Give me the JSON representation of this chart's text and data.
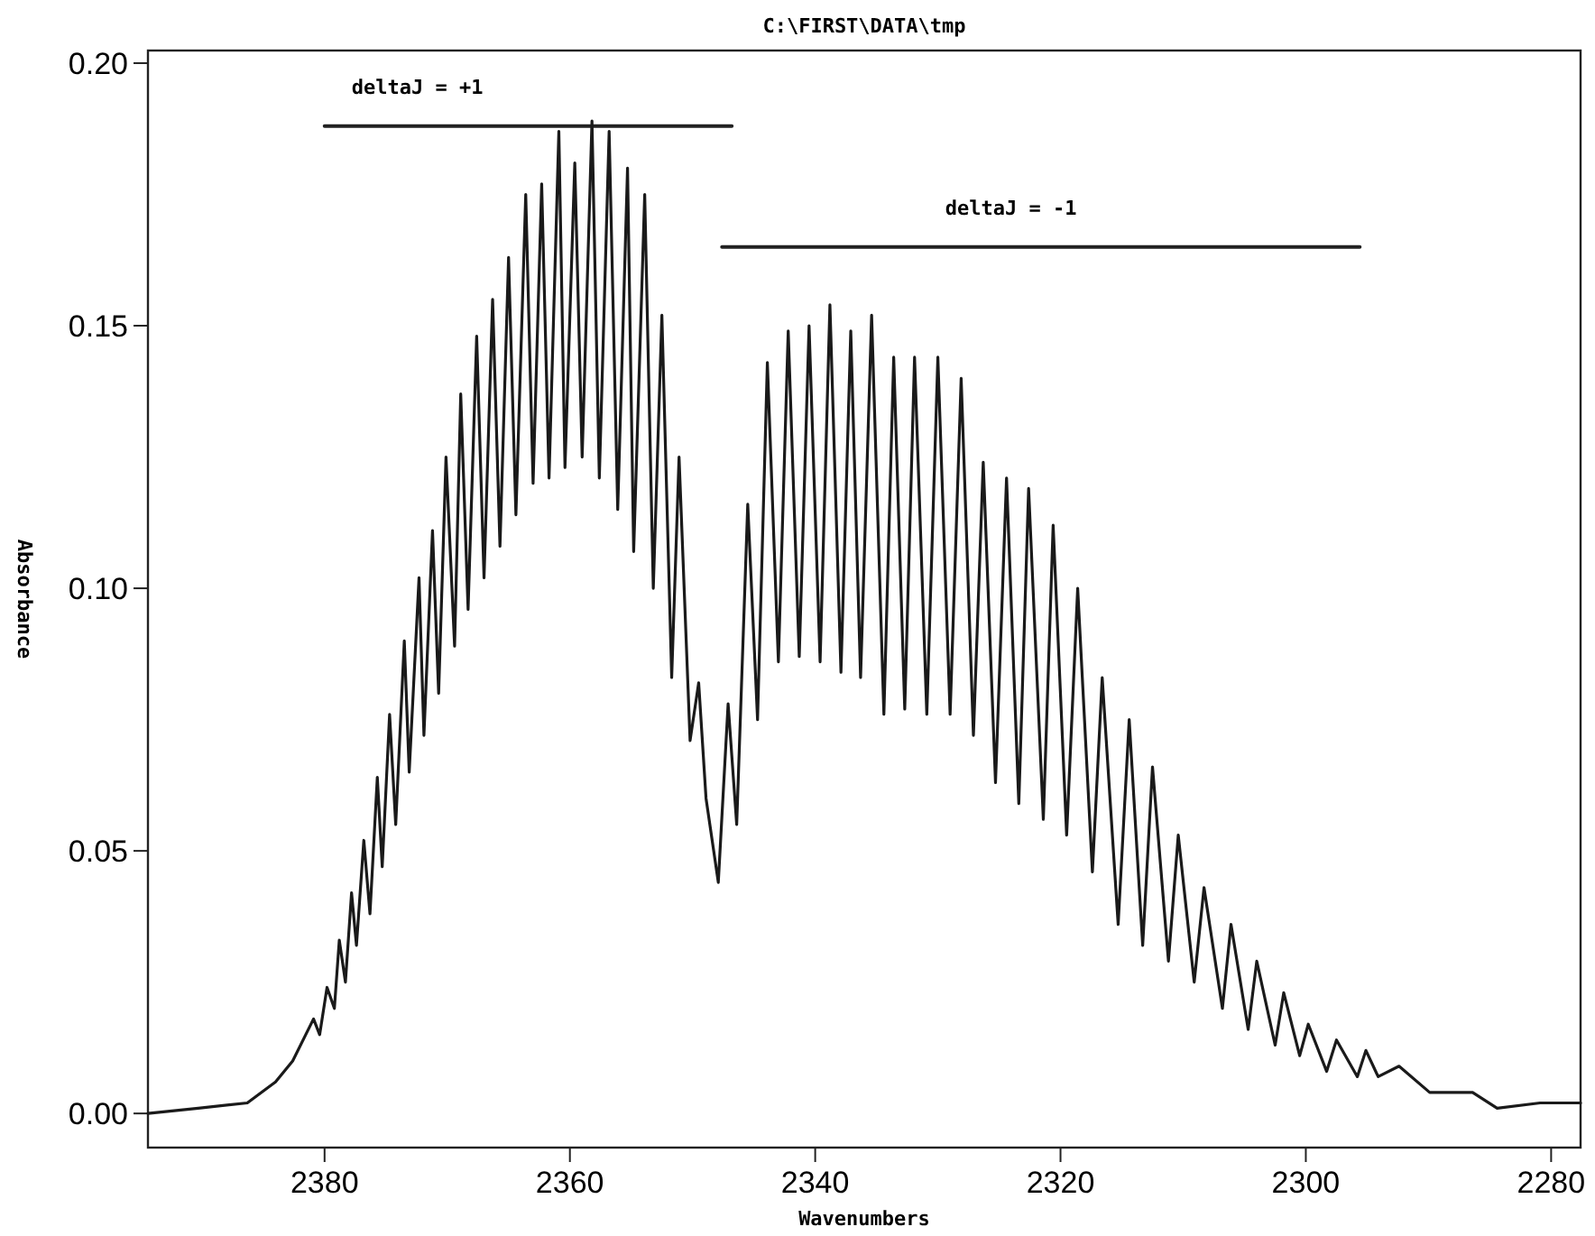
{
  "chart_data": {
    "type": "line",
    "title": "C:\\FIRST\\DATA\\tmp",
    "xlabel": "Wavenumbers",
    "ylabel": "Absorbance",
    "xlim": [
      2394.4,
      2277.6
    ],
    "xticks": [
      2380,
      2360,
      2340,
      2320,
      2300,
      2280
    ],
    "ylim": [
      -0.0065,
      0.2024
    ],
    "yticks": [
      {
        "value": 0,
        "label": "0.00"
      },
      {
        "value": 0.05,
        "label": "0.05"
      },
      {
        "value": 0.1,
        "label": "0.10"
      },
      {
        "value": 0.15,
        "label": "0.15"
      },
      {
        "value": 0.2,
        "label": "0.20"
      }
    ],
    "grid": false,
    "marker": "none",
    "line_style": "solid",
    "legend": false,
    "series": [
      {
        "name": "deltaJ = +1",
        "color": "#222222",
        "x": [
          2380,
          2346.8
        ],
        "values": [
          0.188,
          0.188
        ]
      },
      {
        "name": "deltaJ = -1",
        "color": "#222222",
        "x": [
          2347.6,
          2295.6
        ],
        "values": [
          0.165,
          0.165
        ]
      },
      {
        "color": "#1a1a1a",
        "x": [
          2394.4,
          2390.3,
          2386.3,
          2384.0,
          2382.6,
          2380.9,
          2380.4,
          2379.8,
          2379.2,
          2378.8,
          2378.3,
          2377.8,
          2377.4,
          2376.8,
          2376.3,
          2375.7,
          2375.3,
          2374.7,
          2374.2,
          2373.5,
          2373.1,
          2372.3,
          2371.9,
          2371.2,
          2370.7,
          2370.1,
          2369.4,
          2368.9,
          2368.3,
          2367.6,
          2367.0,
          2366.3,
          2365.7,
          2365.0,
          2364.4,
          2363.6,
          2363.0,
          2362.3,
          2361.7,
          2360.9,
          2360.4,
          2359.6,
          2359.0,
          2358.2,
          2357.6,
          2356.8,
          2356.1,
          2355.3,
          2354.8,
          2353.9,
          2353.2,
          2352.5,
          2351.7,
          2351.1,
          2350.2,
          2349.5,
          2348.9,
          2347.9,
          2347.1,
          2346.4,
          2345.5,
          2344.7,
          2343.9,
          2343.0,
          2342.2,
          2341.3,
          2340.5,
          2339.6,
          2338.8,
          2337.9,
          2337.1,
          2336.3,
          2335.4,
          2334.4,
          2333.6,
          2332.7,
          2331.9,
          2330.9,
          2330.0,
          2329.0,
          2328.1,
          2327.1,
          2326.3,
          2325.3,
          2324.4,
          2323.4,
          2322.6,
          2321.4,
          2320.6,
          2319.5,
          2318.6,
          2317.4,
          2316.6,
          2315.3,
          2314.4,
          2313.3,
          2312.5,
          2311.2,
          2310.4,
          2309.1,
          2308.3,
          2306.8,
          2306.1,
          2304.7,
          2304.0,
          2302.5,
          2301.8,
          2300.5,
          2299.8,
          2298.3,
          2297.5,
          2295.8,
          2295.1,
          2294.1,
          2292.4,
          2289.9,
          2286.4,
          2284.4,
          2280.9,
          2277.6
        ],
        "values": [
          0.0,
          0.001,
          0.002,
          0.006,
          0.01,
          0.018,
          0.015,
          0.024,
          0.02,
          0.033,
          0.025,
          0.042,
          0.032,
          0.052,
          0.038,
          0.064,
          0.047,
          0.076,
          0.055,
          0.09,
          0.065,
          0.102,
          0.072,
          0.111,
          0.08,
          0.125,
          0.089,
          0.137,
          0.096,
          0.148,
          0.102,
          0.155,
          0.108,
          0.163,
          0.114,
          0.175,
          0.12,
          0.177,
          0.121,
          0.187,
          0.123,
          0.181,
          0.125,
          0.189,
          0.121,
          0.187,
          0.115,
          0.18,
          0.107,
          0.175,
          0.1,
          0.152,
          0.083,
          0.125,
          0.071,
          0.082,
          0.06,
          0.044,
          0.078,
          0.055,
          0.116,
          0.075,
          0.143,
          0.086,
          0.149,
          0.087,
          0.15,
          0.086,
          0.154,
          0.084,
          0.149,
          0.083,
          0.152,
          0.076,
          0.144,
          0.077,
          0.144,
          0.076,
          0.144,
          0.076,
          0.14,
          0.072,
          0.124,
          0.063,
          0.121,
          0.059,
          0.119,
          0.056,
          0.112,
          0.053,
          0.1,
          0.046,
          0.083,
          0.036,
          0.075,
          0.032,
          0.066,
          0.029,
          0.053,
          0.025,
          0.043,
          0.02,
          0.036,
          0.016,
          0.029,
          0.013,
          0.023,
          0.011,
          0.017,
          0.008,
          0.014,
          0.007,
          0.012,
          0.007,
          0.009,
          0.004,
          0.004,
          0.001,
          0.002,
          0.002
        ]
      }
    ]
  }
}
